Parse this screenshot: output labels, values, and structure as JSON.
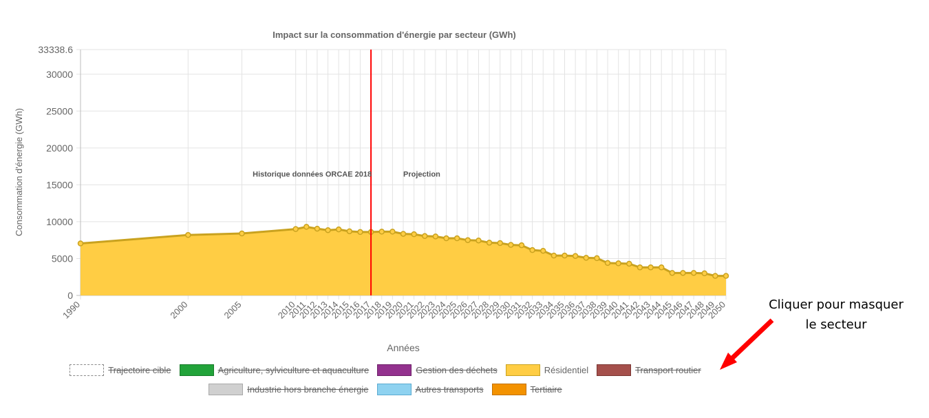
{
  "chart_data": {
    "type": "area",
    "title": "Impact sur la consommation d'énergie par secteur (GWh)",
    "xlabel": "Années",
    "ylabel": "Consommation d'énergie (GWh)",
    "ylim": [
      0,
      33338.6
    ],
    "y_ticks": [
      0,
      5000,
      10000,
      15000,
      20000,
      25000,
      30000,
      33338.6
    ],
    "y_tick_labels": [
      "0",
      "5000",
      "10000",
      "15000",
      "20000",
      "25000",
      "30000",
      "33338.6"
    ],
    "xlim": [
      1990,
      2050
    ],
    "grid": true,
    "x": [
      1990,
      2000,
      2005,
      2010,
      2011,
      2012,
      2013,
      2014,
      2015,
      2016,
      2017,
      2018,
      2019,
      2020,
      2021,
      2022,
      2023,
      2024,
      2025,
      2026,
      2027,
      2028,
      2029,
      2030,
      2031,
      2032,
      2033,
      2034,
      2035,
      2036,
      2037,
      2038,
      2039,
      2040,
      2041,
      2042,
      2043,
      2044,
      2045,
      2046,
      2047,
      2048,
      2049,
      2050
    ],
    "series": [
      {
        "name": "Résidentiel",
        "color": "#FFCD44",
        "border_color": "#C9A21F",
        "values": [
          7050,
          8200,
          8400,
          9000,
          9300,
          9050,
          8850,
          8950,
          8700,
          8600,
          8600,
          8650,
          8650,
          8350,
          8300,
          8050,
          8000,
          7750,
          7750,
          7500,
          7450,
          7150,
          7100,
          6850,
          6800,
          6150,
          6050,
          5400,
          5400,
          5350,
          5100,
          5050,
          4400,
          4350,
          4300,
          3800,
          3800,
          3800,
          3050,
          3050,
          3050,
          3000,
          2650,
          2650
        ]
      }
    ],
    "reference_line": {
      "x": 2017,
      "color": "#FF0000"
    },
    "annotations": [
      {
        "text": "Historique données ORCAE 2018",
        "x": 2006,
        "y": 16500
      },
      {
        "text": "Projection",
        "x": 2020,
        "y": 16500
      }
    ],
    "legend": {
      "placement": "bottom",
      "items": [
        {
          "label": "Trajectoire cible",
          "hidden": true,
          "fill": "#FFFFFF",
          "border": "#888888",
          "dashed": true
        },
        {
          "label": "Agriculture, sylviculture et aquaculture",
          "hidden": true,
          "fill": "#22A33A",
          "border": "#177A28"
        },
        {
          "label": "Gestion des déchets",
          "hidden": true,
          "fill": "#93328E",
          "border": "#6E2069"
        },
        {
          "label": "Résidentiel",
          "hidden": false,
          "fill": "#FFCD44",
          "border": "#C9A21F"
        },
        {
          "label": "Transport routier",
          "hidden": true,
          "fill": "#A5504C",
          "border": "#7A3532"
        },
        {
          "label": "Industrie hors branche énergie",
          "hidden": true,
          "fill": "#D0D0D0",
          "border": "#A8A8A8"
        },
        {
          "label": "Autres transports",
          "hidden": true,
          "fill": "#8ED2F0",
          "border": "#5AAAD0"
        },
        {
          "label": "Tertiaire",
          "hidden": true,
          "fill": "#F39200",
          "border": "#C07000"
        }
      ]
    }
  },
  "note": {
    "line1": "Cliquer pour masquer",
    "line2": "le secteur",
    "arrow_color": "#FF0000"
  }
}
